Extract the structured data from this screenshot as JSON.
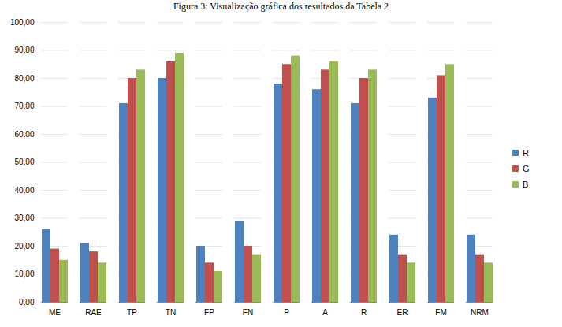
{
  "chart_data": {
    "type": "bar",
    "title": "Figura 3: Visualização gráfica dos resultados da Tabela 2",
    "categories": [
      "ME",
      "RAE",
      "TP",
      "TN",
      "FP",
      "FN",
      "P",
      "A",
      "R",
      "ER",
      "FM",
      "NRM"
    ],
    "series": [
      {
        "name": "R",
        "color": "#4f81bd",
        "values": [
          26,
          21,
          71,
          80,
          20,
          29,
          78,
          76,
          71,
          24,
          73,
          24
        ]
      },
      {
        "name": "G",
        "color": "#c0504d",
        "values": [
          19,
          18,
          80,
          86,
          14,
          20,
          85,
          83,
          80,
          17,
          81,
          17
        ]
      },
      {
        "name": "B",
        "color": "#9bbb59",
        "values": [
          15,
          14,
          83,
          89,
          11,
          17,
          88,
          86,
          83,
          14,
          85,
          14
        ]
      }
    ],
    "ylim": [
      0,
      100
    ],
    "yticks": [
      {
        "value": 0,
        "label": "0,00"
      },
      {
        "value": 10,
        "label": "10,00"
      },
      {
        "value": 20,
        "label": "20,00"
      },
      {
        "value": 30,
        "label": "30,00"
      },
      {
        "value": 40,
        "label": "40,00"
      },
      {
        "value": 50,
        "label": "50,00"
      },
      {
        "value": 60,
        "label": "60,00"
      },
      {
        "value": 70,
        "label": "70,00"
      },
      {
        "value": 80,
        "label": "80,00"
      },
      {
        "value": 90,
        "label": "90,00"
      },
      {
        "value": 100,
        "label": "100,00"
      }
    ],
    "grid": true,
    "legend": "right"
  }
}
